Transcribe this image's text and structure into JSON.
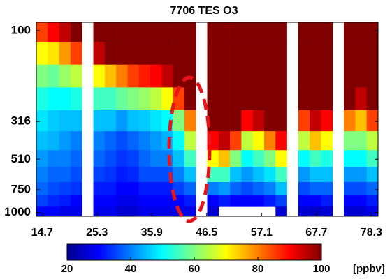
{
  "chart_data": {
    "type": "heatmap",
    "title": "7706 TES O3",
    "x": [
      14.7,
      16.9,
      19.1,
      21.3,
      23.5,
      25.7,
      27.9,
      30.1,
      32.3,
      34.5,
      36.7,
      38.9,
      41.1,
      43.3,
      45.5,
      47.7,
      49.9,
      52.1,
      54.3,
      56.5,
      58.7,
      60.9,
      63.1,
      65.3,
      67.5,
      69.7,
      71.9,
      74.1,
      76.3,
      78.5
    ],
    "levels": [
      100,
      133,
      178,
      237,
      316,
      405,
      510,
      618,
      750,
      866,
      1000
    ],
    "values": [
      [
        85,
        70,
        60,
        52,
        48,
        45,
        42,
        40,
        38,
        35,
        30
      ],
      [
        90,
        72,
        58,
        50,
        46,
        44,
        40,
        38,
        36,
        33,
        30
      ],
      [
        95,
        78,
        62,
        50,
        45,
        42,
        40,
        38,
        35,
        32,
        28
      ],
      [
        100,
        85,
        65,
        52,
        45,
        40,
        38,
        36,
        34,
        30,
        28
      ],
      [
        null,
        null,
        null,
        null,
        null,
        null,
        null,
        null,
        null,
        null,
        null
      ],
      [
        100,
        95,
        70,
        55,
        45,
        40,
        38,
        35,
        32,
        30,
        28
      ],
      [
        100,
        100,
        75,
        55,
        45,
        38,
        36,
        34,
        32,
        30,
        28
      ],
      [
        100,
        100,
        80,
        58,
        42,
        36,
        34,
        32,
        30,
        28,
        26
      ],
      [
        100,
        100,
        85,
        60,
        45,
        38,
        35,
        33,
        30,
        28,
        26
      ],
      [
        100,
        100,
        88,
        62,
        46,
        40,
        38,
        36,
        32,
        30,
        28
      ],
      [
        100,
        100,
        90,
        65,
        48,
        42,
        40,
        36,
        32,
        30,
        28
      ],
      [
        100,
        100,
        95,
        70,
        50,
        44,
        40,
        36,
        32,
        30,
        28
      ],
      [
        100,
        100,
        100,
        85,
        60,
        50,
        45,
        40,
        35,
        30,
        28
      ],
      [
        100,
        100,
        100,
        100,
        80,
        65,
        55,
        45,
        38,
        32,
        28
      ],
      [
        null,
        null,
        null,
        null,
        null,
        null,
        null,
        null,
        null,
        null,
        null
      ],
      [
        100,
        100,
        100,
        100,
        100,
        90,
        70,
        55,
        40,
        30,
        26
      ],
      [
        100,
        100,
        100,
        100,
        100,
        95,
        75,
        55,
        42,
        32,
        null
      ],
      [
        100,
        100,
        100,
        100,
        100,
        85,
        60,
        45,
        38,
        30,
        null
      ],
      [
        100,
        100,
        100,
        100,
        90,
        65,
        50,
        42,
        36,
        30,
        null
      ],
      [
        100,
        100,
        100,
        100,
        95,
        70,
        55,
        45,
        38,
        30,
        null
      ],
      [
        100,
        100,
        100,
        100,
        100,
        80,
        60,
        48,
        40,
        32,
        null
      ],
      [
        100,
        100,
        100,
        100,
        100,
        90,
        70,
        55,
        45,
        35,
        26
      ],
      [
        null,
        null,
        null,
        null,
        null,
        null,
        null,
        null,
        null,
        null,
        null
      ],
      [
        100,
        100,
        100,
        100,
        85,
        65,
        50,
        42,
        36,
        30,
        26
      ],
      [
        100,
        100,
        100,
        100,
        95,
        75,
        55,
        45,
        38,
        30,
        25
      ],
      [
        100,
        100,
        100,
        100,
        90,
        70,
        52,
        45,
        38,
        32,
        26
      ],
      [
        null,
        null,
        null,
        null,
        null,
        null,
        null,
        null,
        null,
        null,
        null
      ],
      [
        100,
        100,
        100,
        100,
        80,
        60,
        50,
        42,
        36,
        30,
        26
      ],
      [
        100,
        100,
        100,
        95,
        75,
        60,
        50,
        42,
        36,
        30,
        26
      ],
      [
        100,
        100,
        100,
        100,
        85,
        65,
        55,
        45,
        38,
        32,
        28
      ]
    ],
    "xlim": [
      13.6,
      79.6
    ],
    "xticks": [
      14.7,
      25.3,
      35.9,
      46.5,
      57.1,
      67.7,
      78.3
    ],
    "ylim": [
      1050,
      90
    ],
    "yticks": [
      100,
      316,
      510,
      750,
      1000
    ],
    "y_scale": "log",
    "clim": [
      20,
      100
    ],
    "colorbar_ticks": [
      20,
      40,
      60,
      80,
      100
    ],
    "colorbar_label": "[ppbv]",
    "colormap": [
      "#00008f",
      "#0000ff",
      "#0080ff",
      "#00ffff",
      "#80ff80",
      "#ffff00",
      "#ff8000",
      "#ff0000",
      "#800000"
    ]
  }
}
